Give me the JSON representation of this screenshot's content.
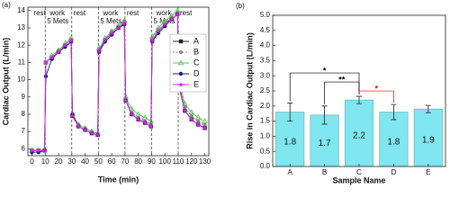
{
  "chart_data": [
    {
      "type": "line",
      "panel_label": "(a)",
      "x_label": "Time (min)",
      "y_label": "Cardiac Output (L/min)",
      "xlim": [
        -3,
        133
      ],
      "ylim": [
        5.6,
        14.2
      ],
      "xticks": [
        0,
        10,
        20,
        30,
        40,
        50,
        60,
        70,
        80,
        90,
        100,
        110,
        120,
        130
      ],
      "yticks": [
        6,
        7,
        8,
        9,
        10,
        11,
        12,
        13,
        14
      ],
      "legend": "upper right",
      "boundaries": [
        10,
        30,
        50,
        70,
        90,
        110
      ],
      "phases": [
        {
          "text": "rest",
          "start": 0
        },
        {
          "text": "work",
          "sub": "5 Mets",
          "start": 10
        },
        {
          "text": "rest",
          "start": 30
        },
        {
          "text": "work",
          "sub": "5 Mets",
          "start": 50
        },
        {
          "text": "rest",
          "start": 70
        },
        {
          "text": "work",
          "sub": "5 Mets",
          "start": 90
        },
        {
          "text": "rest",
          "start": 110
        }
      ],
      "x": [
        0,
        5,
        9.5,
        10.5,
        15,
        20,
        25,
        29.5,
        30.5,
        35,
        40,
        45,
        49.5,
        50.5,
        55,
        60,
        65,
        69.5,
        70.5,
        75,
        80,
        85,
        89.5,
        90.5,
        95,
        100,
        105,
        109.5,
        110.5,
        115,
        120,
        125,
        130
      ],
      "series": [
        {
          "name": "A",
          "color": "#222222",
          "marker": "square",
          "dash": false,
          "values": [
            5.9,
            5.9,
            5.9,
            11.0,
            11.3,
            11.6,
            12.0,
            12.3,
            7.9,
            7.3,
            7.1,
            6.9,
            6.8,
            11.7,
            12.3,
            12.7,
            13.0,
            13.3,
            8.8,
            8.0,
            7.7,
            7.5,
            7.3,
            12.3,
            12.8,
            13.2,
            13.5,
            13.8,
            9.6,
            8.2,
            7.7,
            7.4,
            7.2
          ]
        },
        {
          "name": "B",
          "color": "#8a8a8a",
          "marker": "circle",
          "dash": true,
          "values": [
            5.9,
            5.9,
            5.9,
            11.0,
            11.3,
            11.7,
            12.0,
            12.3,
            8.0,
            7.4,
            7.2,
            7.0,
            6.9,
            11.8,
            12.3,
            12.8,
            13.1,
            13.4,
            8.9,
            8.1,
            7.8,
            7.6,
            7.4,
            12.4,
            12.9,
            13.3,
            13.6,
            13.9,
            9.8,
            8.4,
            7.9,
            7.6,
            7.4
          ]
        },
        {
          "name": "C",
          "color": "#55c855",
          "marker": "triangle",
          "dash": false,
          "values": [
            5.9,
            5.9,
            5.9,
            11.0,
            11.4,
            11.7,
            12.1,
            12.4,
            8.0,
            7.4,
            7.2,
            7.0,
            6.9,
            11.8,
            12.4,
            12.8,
            13.1,
            13.4,
            9.0,
            8.3,
            8.0,
            7.8,
            7.6,
            12.5,
            13.0,
            13.4,
            13.7,
            14.0,
            10.0,
            8.6,
            8.1,
            7.8,
            7.6
          ]
        },
        {
          "name": "D",
          "color": "#1c1c8c",
          "marker": "circle",
          "dash": false,
          "values": [
            5.8,
            5.8,
            5.9,
            10.2,
            11.2,
            11.6,
            11.9,
            12.2,
            8.0,
            7.3,
            7.1,
            6.9,
            6.8,
            11.6,
            12.2,
            12.6,
            13.0,
            13.2,
            8.8,
            8.0,
            7.7,
            7.5,
            7.3,
            12.2,
            12.7,
            13.1,
            13.5,
            13.8,
            9.7,
            8.2,
            7.7,
            7.4,
            7.2
          ]
        },
        {
          "name": "E",
          "color": "#e020e0",
          "marker": "star",
          "dash": false,
          "values": [
            5.9,
            5.9,
            5.9,
            11.0,
            11.3,
            11.6,
            12.0,
            12.3,
            7.9,
            7.3,
            7.1,
            6.9,
            6.8,
            11.7,
            12.3,
            12.7,
            13.0,
            13.3,
            8.8,
            8.0,
            7.7,
            7.5,
            7.3,
            12.3,
            12.8,
            13.2,
            13.5,
            13.8,
            9.6,
            8.2,
            7.7,
            7.4,
            7.2
          ]
        }
      ]
    },
    {
      "type": "bar",
      "panel_label": "(b)",
      "x_label": "Sample Name",
      "y_label": "Rise in Cardiac Output (L/min)",
      "ylim": [
        0,
        5
      ],
      "yticks": [
        {
          "value": 0,
          "label": "0.0"
        },
        0.5,
        {
          "value": 1,
          "label": "1.0"
        },
        1.5,
        {
          "value": 2,
          "label": "2.0"
        },
        2.5,
        {
          "value": 3,
          "label": "3.0"
        },
        3.5,
        {
          "value": 4,
          "label": "4.0"
        },
        4.5,
        {
          "value": 5,
          "label": "5.0"
        }
      ],
      "categories": [
        "A",
        "B",
        "C",
        "D",
        "E"
      ],
      "values": [
        1.8,
        1.7,
        2.2,
        1.8,
        1.9
      ],
      "errors": [
        0.3,
        0.3,
        0.12,
        0.25,
        0.12
      ],
      "color": "#80e6f0",
      "significance": [
        {
          "from": 0,
          "to": 2,
          "label": "*",
          "color": "#000000"
        },
        {
          "from": 1,
          "to": 2,
          "label": "**",
          "color": "#000000"
        },
        {
          "from": 2,
          "to": 3,
          "label": "*",
          "color": "#d01010"
        }
      ]
    }
  ]
}
